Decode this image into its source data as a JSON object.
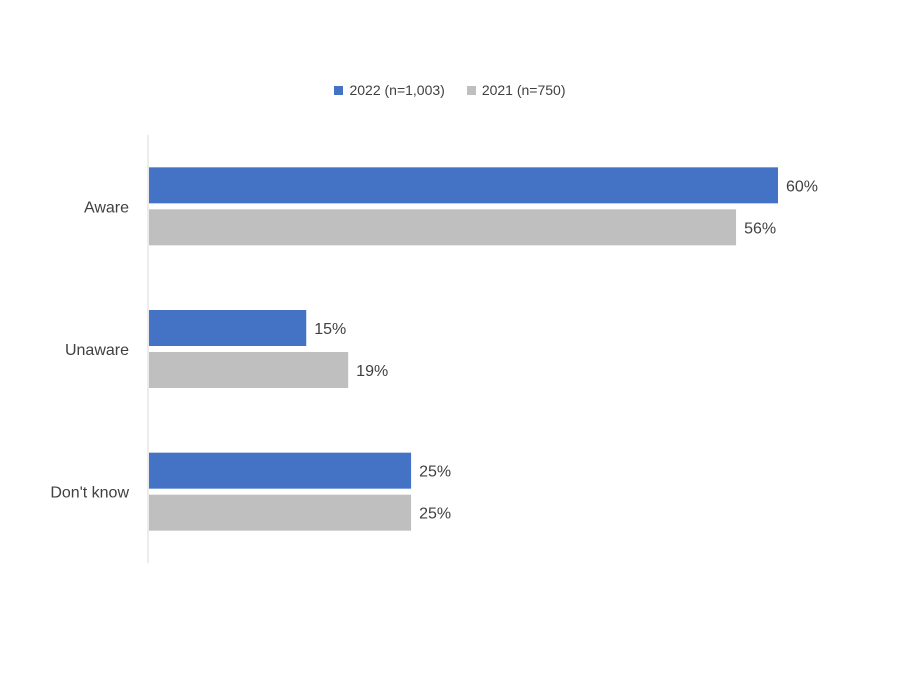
{
  "chart_data": {
    "type": "bar",
    "orientation": "horizontal",
    "categories": [
      "Aware",
      "Unaware",
      "Don't know"
    ],
    "series": [
      {
        "name": "2022 (n=1,003)",
        "values": [
          60,
          15,
          25
        ],
        "labels": [
          "60%",
          "15%",
          "25%"
        ],
        "color": "#4472C4"
      },
      {
        "name": "2021 (n=750)",
        "values": [
          56,
          19,
          25
        ],
        "labels": [
          "56%",
          "19%",
          "25%"
        ],
        "color": "#BFBFBF"
      }
    ],
    "value_unit": "%",
    "xlim": [
      0,
      60
    ],
    "grid": false,
    "legend_position": "top-center"
  }
}
